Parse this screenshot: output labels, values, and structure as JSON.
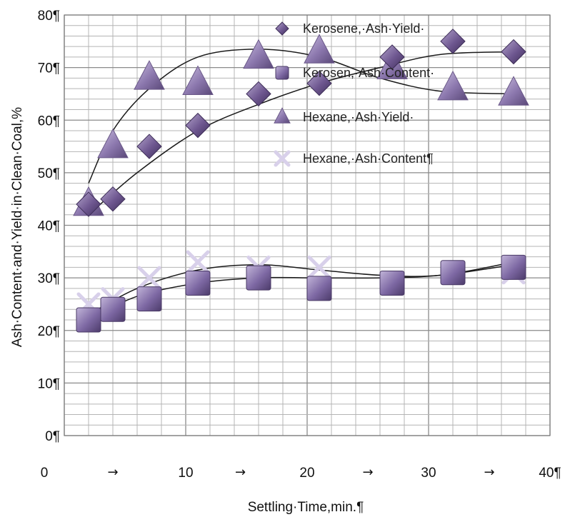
{
  "chart_data": {
    "type": "scatter",
    "title": "",
    "xlabel": "Settling·Time,min.¶",
    "ylabel": "Ash·Content·and·Yield·in·Clean·Coal,%",
    "xlim": [
      0,
      40
    ],
    "ylim": [
      0,
      80
    ],
    "x_ticks": [
      0,
      10,
      20,
      30,
      40
    ],
    "x_tick_labels": [
      "0",
      "10",
      "20",
      "30",
      "40¶"
    ],
    "x_arrow_marks": [
      {
        "x": 4,
        "label": "→"
      },
      {
        "x": 14.5,
        "label": "→"
      },
      {
        "x": 25,
        "label": "→"
      },
      {
        "x": 35,
        "label": "→"
      }
    ],
    "y_ticks": [
      0,
      10,
      20,
      30,
      40,
      50,
      60,
      70,
      80
    ],
    "y_tick_labels": [
      "0¶",
      "10¶",
      "20¶",
      "30¶",
      "40¶",
      "50¶",
      "60¶",
      "70¶",
      "80¶"
    ],
    "grid": true,
    "legend_position": "top-right",
    "series": [
      {
        "name": "Kerosene,·Ash·Yield·",
        "marker": "diamond",
        "color": "#6e5790",
        "x": [
          2,
          4,
          7,
          11,
          16,
          21,
          27,
          32,
          37
        ],
        "y": [
          44,
          45,
          55,
          59,
          65,
          67,
          72,
          75,
          73
        ]
      },
      {
        "name": "Kerosen,·Ash·Content·",
        "marker": "square",
        "color": "#7d68a3",
        "x": [
          2,
          4,
          7,
          11,
          16,
          21,
          27,
          32,
          37
        ],
        "y": [
          22,
          24,
          26,
          29,
          30,
          28,
          29,
          31,
          32
        ]
      },
      {
        "name": "Hexane,·Ash·Yield·",
        "marker": "triangle",
        "color": "#8b77ad",
        "x": [
          2,
          4,
          7,
          11,
          16,
          21,
          27,
          32,
          37
        ],
        "y": [
          44,
          55,
          68,
          67,
          72,
          73,
          70,
          66,
          65
        ]
      },
      {
        "name": "Hexane,·Ash·Content¶",
        "marker": "x",
        "color": "#d8d0ea",
        "x": [
          2,
          4,
          7,
          11,
          16,
          21,
          27,
          32,
          37
        ],
        "y": [
          25,
          26,
          30,
          33,
          32,
          32,
          29,
          31,
          31
        ]
      }
    ],
    "trendlines": [
      {
        "series": "Kerosene,·Ash·Yield·",
        "x": [
          2,
          6,
          11,
          16,
          21,
          26,
          31,
          37
        ],
        "y": [
          42,
          50,
          58,
          63,
          67,
          70,
          72.5,
          73
        ]
      },
      {
        "series": "Hexane,·Ash·Yield·",
        "x": [
          2,
          4,
          7,
          11,
          16,
          21,
          26,
          31,
          37
        ],
        "y": [
          48,
          58,
          66,
          72,
          73.5,
          72,
          68,
          65.5,
          65
        ]
      },
      {
        "series": "Kerosen,·Ash·Content·",
        "x": [
          2,
          6,
          11,
          16,
          21,
          26,
          31,
          37
        ],
        "y": [
          22,
          26.5,
          29,
          30,
          30,
          30,
          30.5,
          32.5
        ]
      },
      {
        "series": "Hexane,·Ash·Content¶",
        "x": [
          2,
          6,
          11,
          16,
          21,
          26,
          31,
          37
        ],
        "y": [
          23,
          28,
          31.5,
          32.5,
          31.5,
          30.5,
          30.5,
          33
        ]
      }
    ]
  }
}
